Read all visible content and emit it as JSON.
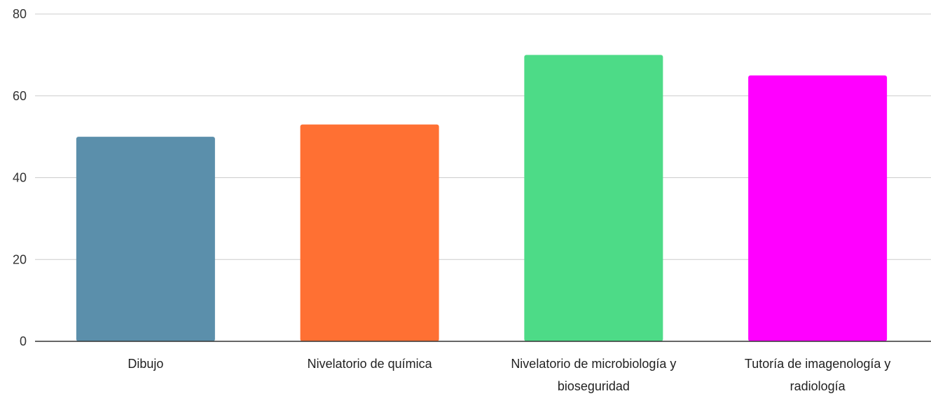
{
  "chart_data": {
    "type": "bar",
    "title": "",
    "xlabel": "",
    "ylabel": "",
    "categories": [
      [
        "Dibujo"
      ],
      [
        "Nivelatorio de química"
      ],
      [
        "Nivelatorio de microbiología y",
        "bioseguridad"
      ],
      [
        "Tutoría de imagenología y",
        "radiología"
      ]
    ],
    "values": [
      50,
      53,
      70,
      65
    ],
    "colors": [
      "#5b8fab",
      "#ff7033",
      "#4ddb87",
      "#ff00ff"
    ],
    "ylim": [
      0,
      80
    ],
    "yticks": [
      0,
      20,
      40,
      60,
      80
    ],
    "grid": true,
    "legend": "none"
  }
}
